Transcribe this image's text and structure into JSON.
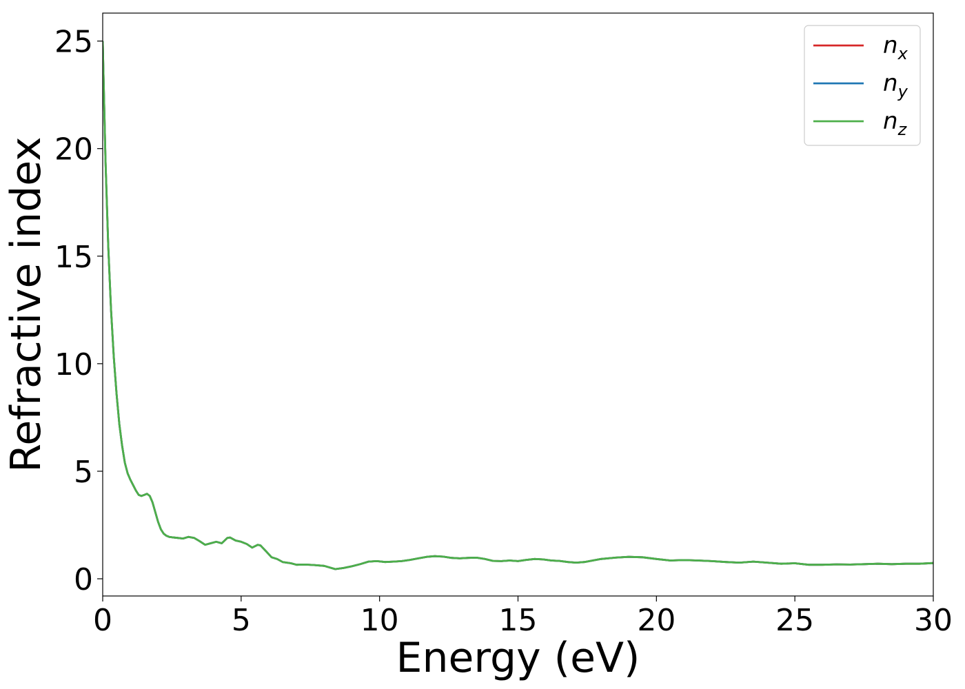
{
  "chart_data": {
    "type": "line",
    "title": "",
    "xlabel": "Energy (eV)",
    "ylabel": "Refractive index",
    "xlim": [
      0,
      30
    ],
    "ylim": [
      -0.8,
      26.3
    ],
    "xticks": [
      0,
      5,
      10,
      15,
      20,
      25,
      30
    ],
    "yticks": [
      0,
      5,
      10,
      15,
      20,
      25
    ],
    "grid": false,
    "legend_position": "top-right",
    "x": [
      0,
      0.1,
      0.2,
      0.3,
      0.4,
      0.5,
      0.6,
      0.7,
      0.8,
      0.9,
      1.0,
      1.1,
      1.2,
      1.3,
      1.4,
      1.5,
      1.6,
      1.7,
      1.8,
      1.9,
      2.0,
      2.1,
      2.2,
      2.3,
      2.4,
      2.5,
      2.7,
      2.9,
      3.1,
      3.3,
      3.5,
      3.7,
      3.9,
      4.1,
      4.3,
      4.5,
      4.6,
      4.8,
      5.0,
      5.2,
      5.4,
      5.6,
      5.7,
      5.9,
      6.1,
      6.3,
      6.5,
      6.8,
      7.0,
      7.3,
      7.6,
      8.0,
      8.4,
      8.7,
      9.0,
      9.3,
      9.6,
      9.9,
      10.2,
      10.5,
      10.8,
      11.1,
      11.4,
      11.7,
      12.0,
      12.3,
      12.6,
      12.9,
      13.2,
      13.5,
      13.8,
      14.1,
      14.4,
      14.7,
      15.0,
      15.3,
      15.6,
      15.9,
      16.2,
      16.5,
      16.8,
      17.1,
      17.4,
      17.7,
      18.0,
      18.5,
      19.0,
      19.5,
      20.0,
      20.5,
      21.0,
      21.5,
      22.0,
      22.5,
      23.0,
      23.5,
      24.0,
      24.5,
      25.0,
      25.5,
      26.0,
      26.5,
      27.0,
      27.5,
      28.0,
      28.5,
      29.0,
      29.5,
      30.0
    ],
    "series": [
      {
        "name": "n_x",
        "label_base": "n",
        "label_sub": "x",
        "color": "#d62728",
        "values": [
          25.0,
          19.5,
          15.5,
          12.5,
          10.3,
          8.6,
          7.2,
          6.2,
          5.4,
          4.9,
          4.6,
          4.35,
          4.1,
          3.9,
          3.85,
          3.9,
          3.95,
          3.85,
          3.55,
          3.1,
          2.65,
          2.3,
          2.1,
          2.0,
          1.95,
          1.93,
          1.9,
          1.87,
          1.95,
          1.9,
          1.75,
          1.58,
          1.65,
          1.72,
          1.65,
          1.9,
          1.92,
          1.78,
          1.72,
          1.62,
          1.45,
          1.58,
          1.55,
          1.28,
          1.0,
          0.92,
          0.78,
          0.72,
          0.65,
          0.66,
          0.64,
          0.6,
          0.45,
          0.5,
          0.58,
          0.68,
          0.8,
          0.82,
          0.78,
          0.8,
          0.82,
          0.88,
          0.95,
          1.02,
          1.05,
          1.03,
          0.97,
          0.95,
          0.97,
          0.98,
          0.92,
          0.83,
          0.82,
          0.85,
          0.82,
          0.88,
          0.92,
          0.9,
          0.85,
          0.83,
          0.78,
          0.75,
          0.78,
          0.85,
          0.92,
          0.98,
          1.02,
          1.0,
          0.92,
          0.85,
          0.87,
          0.85,
          0.82,
          0.78,
          0.75,
          0.8,
          0.75,
          0.7,
          0.72,
          0.65,
          0.65,
          0.67,
          0.66,
          0.68,
          0.7,
          0.68,
          0.7,
          0.7,
          0.73
        ]
      },
      {
        "name": "n_y",
        "label_base": "n",
        "label_sub": "y",
        "color": "#1f77b4",
        "values": [
          25.0,
          19.5,
          15.5,
          12.5,
          10.3,
          8.6,
          7.2,
          6.2,
          5.4,
          4.9,
          4.6,
          4.35,
          4.1,
          3.9,
          3.85,
          3.9,
          3.95,
          3.85,
          3.55,
          3.1,
          2.65,
          2.3,
          2.1,
          2.0,
          1.95,
          1.93,
          1.9,
          1.87,
          1.95,
          1.9,
          1.75,
          1.58,
          1.65,
          1.72,
          1.65,
          1.9,
          1.92,
          1.78,
          1.72,
          1.62,
          1.45,
          1.58,
          1.55,
          1.28,
          1.0,
          0.92,
          0.78,
          0.72,
          0.65,
          0.66,
          0.64,
          0.6,
          0.45,
          0.5,
          0.58,
          0.68,
          0.8,
          0.82,
          0.78,
          0.8,
          0.82,
          0.88,
          0.95,
          1.02,
          1.05,
          1.03,
          0.97,
          0.95,
          0.97,
          0.98,
          0.92,
          0.83,
          0.82,
          0.85,
          0.82,
          0.88,
          0.92,
          0.9,
          0.85,
          0.83,
          0.78,
          0.75,
          0.78,
          0.85,
          0.92,
          0.98,
          1.02,
          1.0,
          0.92,
          0.85,
          0.87,
          0.85,
          0.82,
          0.78,
          0.75,
          0.8,
          0.75,
          0.7,
          0.72,
          0.65,
          0.65,
          0.67,
          0.66,
          0.68,
          0.7,
          0.68,
          0.7,
          0.7,
          0.73
        ]
      },
      {
        "name": "n_z",
        "label_base": "n",
        "label_sub": "z",
        "color": "#4daf4a",
        "values": [
          25.0,
          19.5,
          15.5,
          12.5,
          10.3,
          8.6,
          7.2,
          6.2,
          5.4,
          4.9,
          4.6,
          4.35,
          4.1,
          3.9,
          3.85,
          3.9,
          3.95,
          3.85,
          3.55,
          3.1,
          2.65,
          2.3,
          2.1,
          2.0,
          1.95,
          1.93,
          1.9,
          1.87,
          1.95,
          1.9,
          1.75,
          1.58,
          1.65,
          1.72,
          1.65,
          1.9,
          1.92,
          1.78,
          1.72,
          1.62,
          1.45,
          1.58,
          1.55,
          1.28,
          1.0,
          0.92,
          0.78,
          0.72,
          0.65,
          0.66,
          0.64,
          0.6,
          0.45,
          0.5,
          0.58,
          0.68,
          0.8,
          0.82,
          0.78,
          0.8,
          0.82,
          0.88,
          0.95,
          1.02,
          1.05,
          1.03,
          0.97,
          0.95,
          0.97,
          0.98,
          0.92,
          0.83,
          0.82,
          0.85,
          0.82,
          0.88,
          0.92,
          0.9,
          0.85,
          0.83,
          0.78,
          0.75,
          0.78,
          0.85,
          0.92,
          0.98,
          1.02,
          1.0,
          0.92,
          0.85,
          0.87,
          0.85,
          0.82,
          0.78,
          0.75,
          0.8,
          0.75,
          0.7,
          0.72,
          0.65,
          0.65,
          0.67,
          0.66,
          0.68,
          0.7,
          0.68,
          0.7,
          0.7,
          0.73
        ]
      }
    ]
  }
}
